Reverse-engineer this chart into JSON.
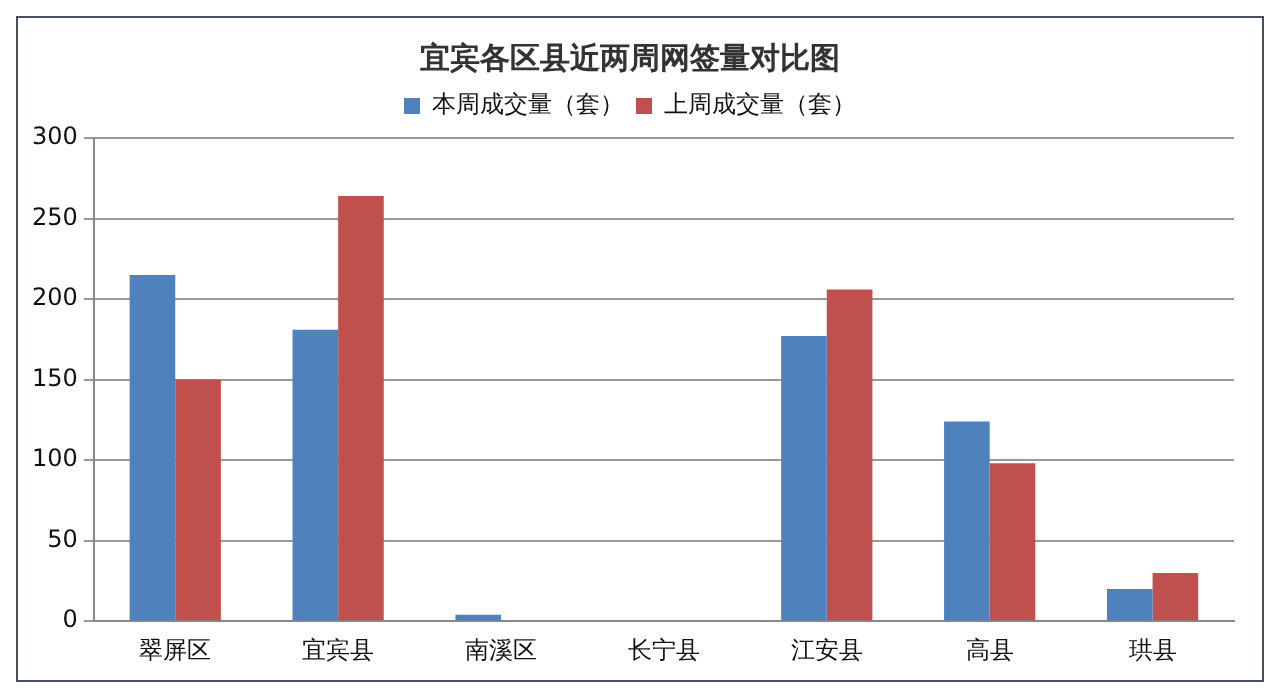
{
  "chart_data": {
    "type": "bar",
    "title": "宜宾各区县近两周网签量对比图",
    "categories": [
      "翠屏区",
      "宜宾县",
      "南溪区",
      "长宁县",
      "江安县",
      "高县",
      "珙县"
    ],
    "series": [
      {
        "name": "本周成交量（套）",
        "color": "#4f81bd",
        "values": [
          215,
          181,
          4,
          0,
          177,
          124,
          20
        ]
      },
      {
        "name": "上周成交量（套）",
        "color": "#c0504d",
        "values": [
          150,
          264,
          0,
          0,
          206,
          98,
          30
        ]
      }
    ],
    "ylim": [
      0,
      300
    ],
    "yticks": [
      0,
      50,
      100,
      150,
      200,
      250,
      300
    ],
    "grid": "y",
    "legend": "top"
  }
}
